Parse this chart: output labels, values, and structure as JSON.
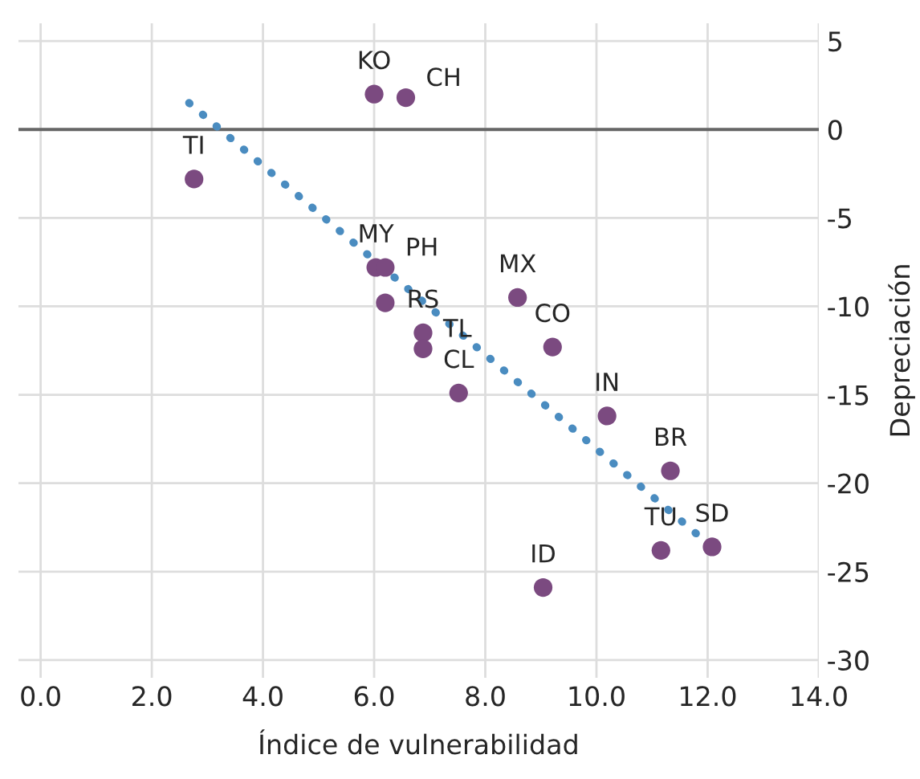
{
  "chart_data": {
    "type": "scatter",
    "xlabel": "Índice de vulnerabilidad",
    "ylabel": "Depreciación",
    "series": [
      {
        "color": "#7b4a80",
        "marker": "circle",
        "x": [
          6.0,
          6.57,
          2.76,
          6.03,
          6.2,
          6.2,
          6.88,
          6.88,
          8.58,
          9.21,
          10.19,
          11.33,
          12.08,
          11.16,
          7.52,
          9.04
        ],
        "values": [
          2.0,
          1.8,
          -2.8,
          -7.8,
          -7.8,
          -9.8,
          -11.5,
          -12.4,
          -9.5,
          -12.3,
          -16.2,
          -19.3,
          -23.6,
          -23.8,
          -14.9,
          -25.9
        ]
      },
      {
        "type": "line",
        "color": "#4a8cc0",
        "line_style": "dotted",
        "x": [
          2.67,
          11.85
        ],
        "values": [
          1.5,
          -23.0
        ]
      }
    ],
    "annotations": [
      {
        "text": "KO",
        "x": 6.0,
        "y": 2.0
      },
      {
        "text": "CH",
        "x": 6.57,
        "y": 1.8
      },
      {
        "text": "TI",
        "x": 2.76,
        "y": -2.8
      },
      {
        "text": "MY",
        "x": 6.03,
        "y": -7.8
      },
      {
        "text": "PH",
        "x": 6.2,
        "y": -7.8
      },
      {
        "text": "RS",
        "x": 6.88,
        "y": -11.5
      },
      {
        "text": "TL",
        "x": 6.88,
        "y": -12.4
      },
      {
        "text": "MX",
        "x": 8.58,
        "y": -9.5
      },
      {
        "text": "CO",
        "x": 9.21,
        "y": -12.3
      },
      {
        "text": "IN",
        "x": 10.19,
        "y": -16.2
      },
      {
        "text": "BR",
        "x": 11.33,
        "y": -19.3
      },
      {
        "text": "SD",
        "x": 12.08,
        "y": -23.6
      },
      {
        "text": "TU",
        "x": 11.16,
        "y": -23.8
      },
      {
        "text": "CL",
        "x": 7.52,
        "y": -14.9
      },
      {
        "text": "ID",
        "x": 9.04,
        "y": -25.9
      }
    ],
    "ref_lines": [
      {
        "axis": "y",
        "value": 0,
        "color": "#666666"
      }
    ],
    "xlim": [
      -0.4,
      14.0
    ],
    "ylim": [
      -31,
      6
    ],
    "xticks": [
      {
        "value": 0,
        "label": "0.0"
      },
      {
        "value": 2,
        "label": "2.0"
      },
      {
        "value": 4,
        "label": "4.0"
      },
      {
        "value": 6,
        "label": "6.0"
      },
      {
        "value": 8,
        "label": "8.0"
      },
      {
        "value": 10,
        "label": "10.0"
      },
      {
        "value": 12,
        "label": "12.0"
      },
      {
        "value": 14,
        "label": "14.0"
      }
    ],
    "yticks": [
      5,
      0,
      -5,
      -10,
      -15,
      -20,
      -25,
      -30
    ],
    "grid": true,
    "legend": false
  }
}
